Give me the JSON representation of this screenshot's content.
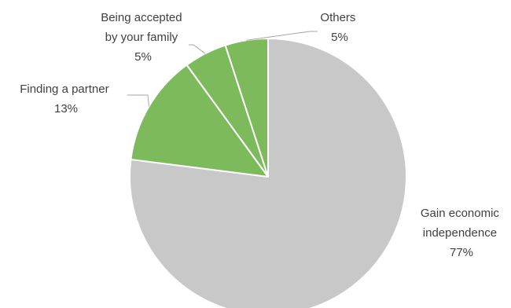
{
  "chart_data": {
    "type": "pie",
    "title": "",
    "slices": [
      {
        "label_lines": [
          "Gain economic",
          "independence"
        ],
        "value_label": "77%",
        "value": 77,
        "color": "#c8c8c8"
      },
      {
        "label_lines": [
          "Finding a partner"
        ],
        "value_label": "13%",
        "value": 13,
        "color": "#7dba5c"
      },
      {
        "label_lines": [
          "Being accepted",
          "by your family"
        ],
        "value_label": "5%",
        "value": 5,
        "color": "#7dba5c"
      },
      {
        "label_lines": [
          "Others"
        ],
        "value_label": "5%",
        "value": 5,
        "color": "#7dba5c"
      }
    ],
    "start": "top",
    "direction": "clockwise",
    "slice_border_color": "#ffffff",
    "leader_line_color": "#a6a6a6"
  }
}
